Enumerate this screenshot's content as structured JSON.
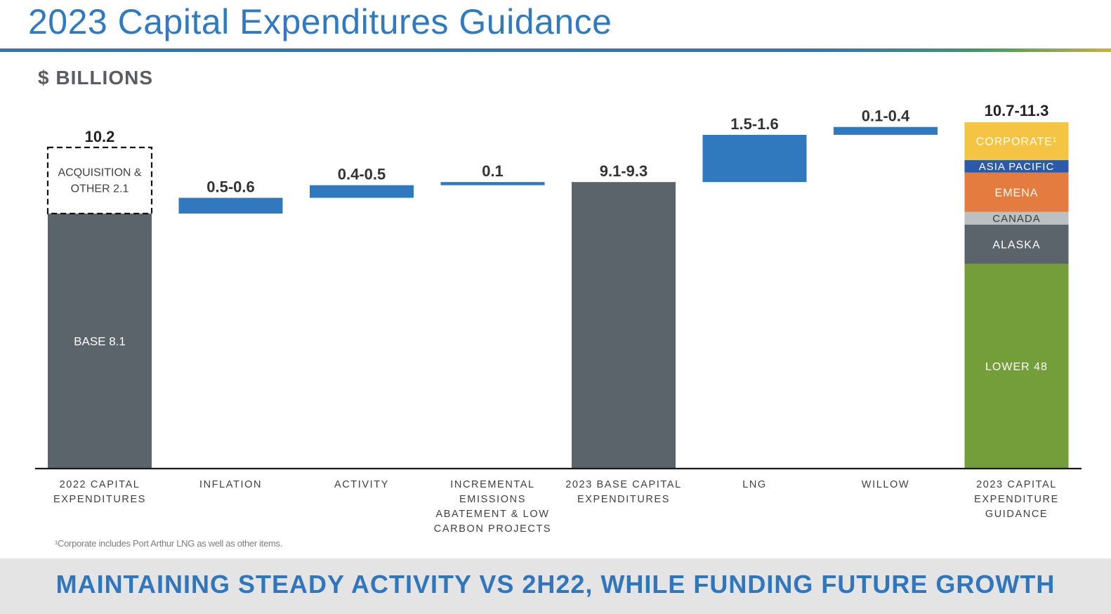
{
  "title": "2023 Capital Expenditures Guidance",
  "units_label": "$ BILLIONS",
  "footnote": "¹Corporate includes Port Arthur LNG as well as other items.",
  "banner": "MAINTAINING STEADY ACTIVITY VS 2H22, WHILE FUNDING FUTURE GROWTH",
  "colors": {
    "base_bar": "#5b636b",
    "increment": "#3179be",
    "axis": "#1a1a1a",
    "title": "#2f7ac0",
    "corporate": "#f5c444",
    "asia_pacific": "#2c5aa8",
    "emena": "#e37c3e",
    "canada": "#bcc0c3",
    "alaska": "#5b636b",
    "lower_48": "#749e3a"
  },
  "chart_data": {
    "type": "bar",
    "subtype": "waterfall",
    "ylim": [
      0,
      12.5
    ],
    "categories": [
      [
        "2022 CAPITAL",
        "EXPENDITURES"
      ],
      [
        "INFLATION"
      ],
      [
        "ACTIVITY"
      ],
      [
        "INCREMENTAL",
        "EMISSIONS",
        "ABATEMENT & LOW",
        "CARBON PROJECTS"
      ],
      [
        "2023 BASE CAPITAL",
        "EXPENDITURES"
      ],
      [
        "LNG"
      ],
      [
        "WILLOW"
      ],
      [
        "2023 CAPITAL",
        "EXPENDITURE",
        "GUIDANCE"
      ]
    ],
    "bars": [
      {
        "kind": "total_with_removed",
        "label": "10.2",
        "segments": [
          {
            "name": "BASE 8.1",
            "start": 0,
            "end": 8.1,
            "style": "solid",
            "color_key": "base_bar",
            "label_lines": [
              "BASE 8.1"
            ]
          },
          {
            "name": "ACQUISITION & OTHER 2.1",
            "start": 8.1,
            "end": 10.2,
            "style": "dashed",
            "label_lines": [
              "ACQUISITION &",
              "OTHER 2.1"
            ]
          }
        ]
      },
      {
        "kind": "increment",
        "label": "0.5-0.6",
        "start": 8.1,
        "end": 8.6,
        "color_key": "increment"
      },
      {
        "kind": "increment",
        "label": "0.4-0.5",
        "start": 8.6,
        "end": 9.0,
        "color_key": "increment"
      },
      {
        "kind": "increment",
        "label": "0.1",
        "start": 9.0,
        "end": 9.1,
        "color_key": "increment"
      },
      {
        "kind": "total",
        "label": "9.1-9.3",
        "start": 0,
        "end": 9.1,
        "color_key": "base_bar"
      },
      {
        "kind": "increment",
        "label": "1.5-1.6",
        "start": 9.1,
        "end": 10.6,
        "color_key": "increment"
      },
      {
        "kind": "increment",
        "label": "0.1-0.4",
        "start": 10.6,
        "end": 10.85,
        "color_key": "increment"
      },
      {
        "kind": "stacked",
        "label": "10.7-11.3",
        "segments": [
          {
            "name": "LOWER 48",
            "start": 0,
            "end": 6.5,
            "color_key": "lower_48",
            "label_lines": [
              "LOWER 48"
            ]
          },
          {
            "name": "ALASKA",
            "start": 6.5,
            "end": 7.75,
            "color_key": "alaska",
            "label_lines": [
              "ALASKA"
            ]
          },
          {
            "name": "CANADA",
            "start": 7.75,
            "end": 8.15,
            "color_key": "canada",
            "label_lines": [
              "CANADA"
            ]
          },
          {
            "name": "EMENA",
            "start": 8.15,
            "end": 9.4,
            "color_key": "emena",
            "label_lines": [
              "EMENA"
            ]
          },
          {
            "name": "ASIA PACIFIC",
            "start": 9.4,
            "end": 9.8,
            "color_key": "asia_pacific",
            "label_lines": [
              "ASIA PACIFIC"
            ]
          },
          {
            "name": "CORPORATE¹",
            "start": 9.8,
            "end": 11.0,
            "color_key": "corporate",
            "label_lines": [
              "CORPORATE¹"
            ]
          }
        ]
      }
    ]
  }
}
